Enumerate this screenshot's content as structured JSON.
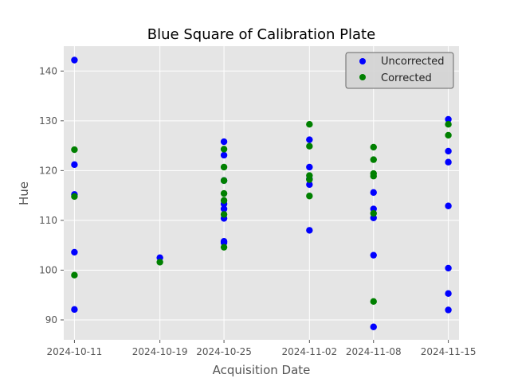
{
  "chart_data": {
    "type": "scatter",
    "title": "Blue Square of Calibration Plate",
    "xlabel": "Acquisition Date",
    "ylabel": "Hue",
    "x_ticks": [
      "2024-10-11",
      "2024-10-19",
      "2024-10-25",
      "2024-11-02",
      "2024-11-08",
      "2024-11-15"
    ],
    "y_ticks": [
      90,
      100,
      110,
      120,
      130,
      140
    ],
    "xlim": [
      "2024-10-10",
      "2024-11-16"
    ],
    "ylim": [
      86,
      145
    ],
    "grid": true,
    "legend_position": "top-right",
    "series": [
      {
        "name": "Uncorrected",
        "color": "#0000ff",
        "points": [
          {
            "x": "2024-10-11",
            "y": 142.2
          },
          {
            "x": "2024-10-11",
            "y": 121.2
          },
          {
            "x": "2024-10-11",
            "y": 115.2
          },
          {
            "x": "2024-10-11",
            "y": 103.6
          },
          {
            "x": "2024-10-11",
            "y": 92.1
          },
          {
            "x": "2024-10-19",
            "y": 102.5
          },
          {
            "x": "2024-10-25",
            "y": 125.8
          },
          {
            "x": "2024-10-25",
            "y": 123.1
          },
          {
            "x": "2024-10-25",
            "y": 118.0
          },
          {
            "x": "2024-10-25",
            "y": 113.3
          },
          {
            "x": "2024-10-25",
            "y": 112.3
          },
          {
            "x": "2024-10-25",
            "y": 110.4
          },
          {
            "x": "2024-10-25",
            "y": 105.8
          },
          {
            "x": "2024-10-25",
            "y": 105.5
          },
          {
            "x": "2024-11-02",
            "y": 126.2
          },
          {
            "x": "2024-11-02",
            "y": 120.7
          },
          {
            "x": "2024-11-02",
            "y": 118.3
          },
          {
            "x": "2024-11-02",
            "y": 117.2
          },
          {
            "x": "2024-11-02",
            "y": 108.0
          },
          {
            "x": "2024-11-08",
            "y": 115.6
          },
          {
            "x": "2024-11-08",
            "y": 112.3
          },
          {
            "x": "2024-11-08",
            "y": 110.5
          },
          {
            "x": "2024-11-08",
            "y": 103.0
          },
          {
            "x": "2024-11-08",
            "y": 88.6
          },
          {
            "x": "2024-11-15",
            "y": 130.3
          },
          {
            "x": "2024-11-15",
            "y": 123.9
          },
          {
            "x": "2024-11-15",
            "y": 121.7
          },
          {
            "x": "2024-11-15",
            "y": 112.9
          },
          {
            "x": "2024-11-15",
            "y": 100.4
          },
          {
            "x": "2024-11-15",
            "y": 95.3
          },
          {
            "x": "2024-11-15",
            "y": 92.0
          }
        ]
      },
      {
        "name": "Corrected",
        "color": "#008000",
        "points": [
          {
            "x": "2024-10-11",
            "y": 124.2
          },
          {
            "x": "2024-10-11",
            "y": 114.8
          },
          {
            "x": "2024-10-11",
            "y": 99.0
          },
          {
            "x": "2024-10-19",
            "y": 101.6
          },
          {
            "x": "2024-10-25",
            "y": 124.3
          },
          {
            "x": "2024-10-25",
            "y": 120.7
          },
          {
            "x": "2024-10-25",
            "y": 118.0
          },
          {
            "x": "2024-10-25",
            "y": 115.4
          },
          {
            "x": "2024-10-25",
            "y": 114.0
          },
          {
            "x": "2024-10-25",
            "y": 111.2
          },
          {
            "x": "2024-10-25",
            "y": 104.6
          },
          {
            "x": "2024-11-02",
            "y": 129.3
          },
          {
            "x": "2024-11-02",
            "y": 124.9
          },
          {
            "x": "2024-11-02",
            "y": 119.0
          },
          {
            "x": "2024-11-02",
            "y": 118.2
          },
          {
            "x": "2024-11-02",
            "y": 114.9
          },
          {
            "x": "2024-11-08",
            "y": 124.7
          },
          {
            "x": "2024-11-08",
            "y": 122.2
          },
          {
            "x": "2024-11-08",
            "y": 119.4
          },
          {
            "x": "2024-11-08",
            "y": 118.9
          },
          {
            "x": "2024-11-08",
            "y": 111.4
          },
          {
            "x": "2024-11-08",
            "y": 93.7
          },
          {
            "x": "2024-11-15",
            "y": 129.3
          },
          {
            "x": "2024-11-15",
            "y": 127.1
          }
        ]
      }
    ]
  }
}
